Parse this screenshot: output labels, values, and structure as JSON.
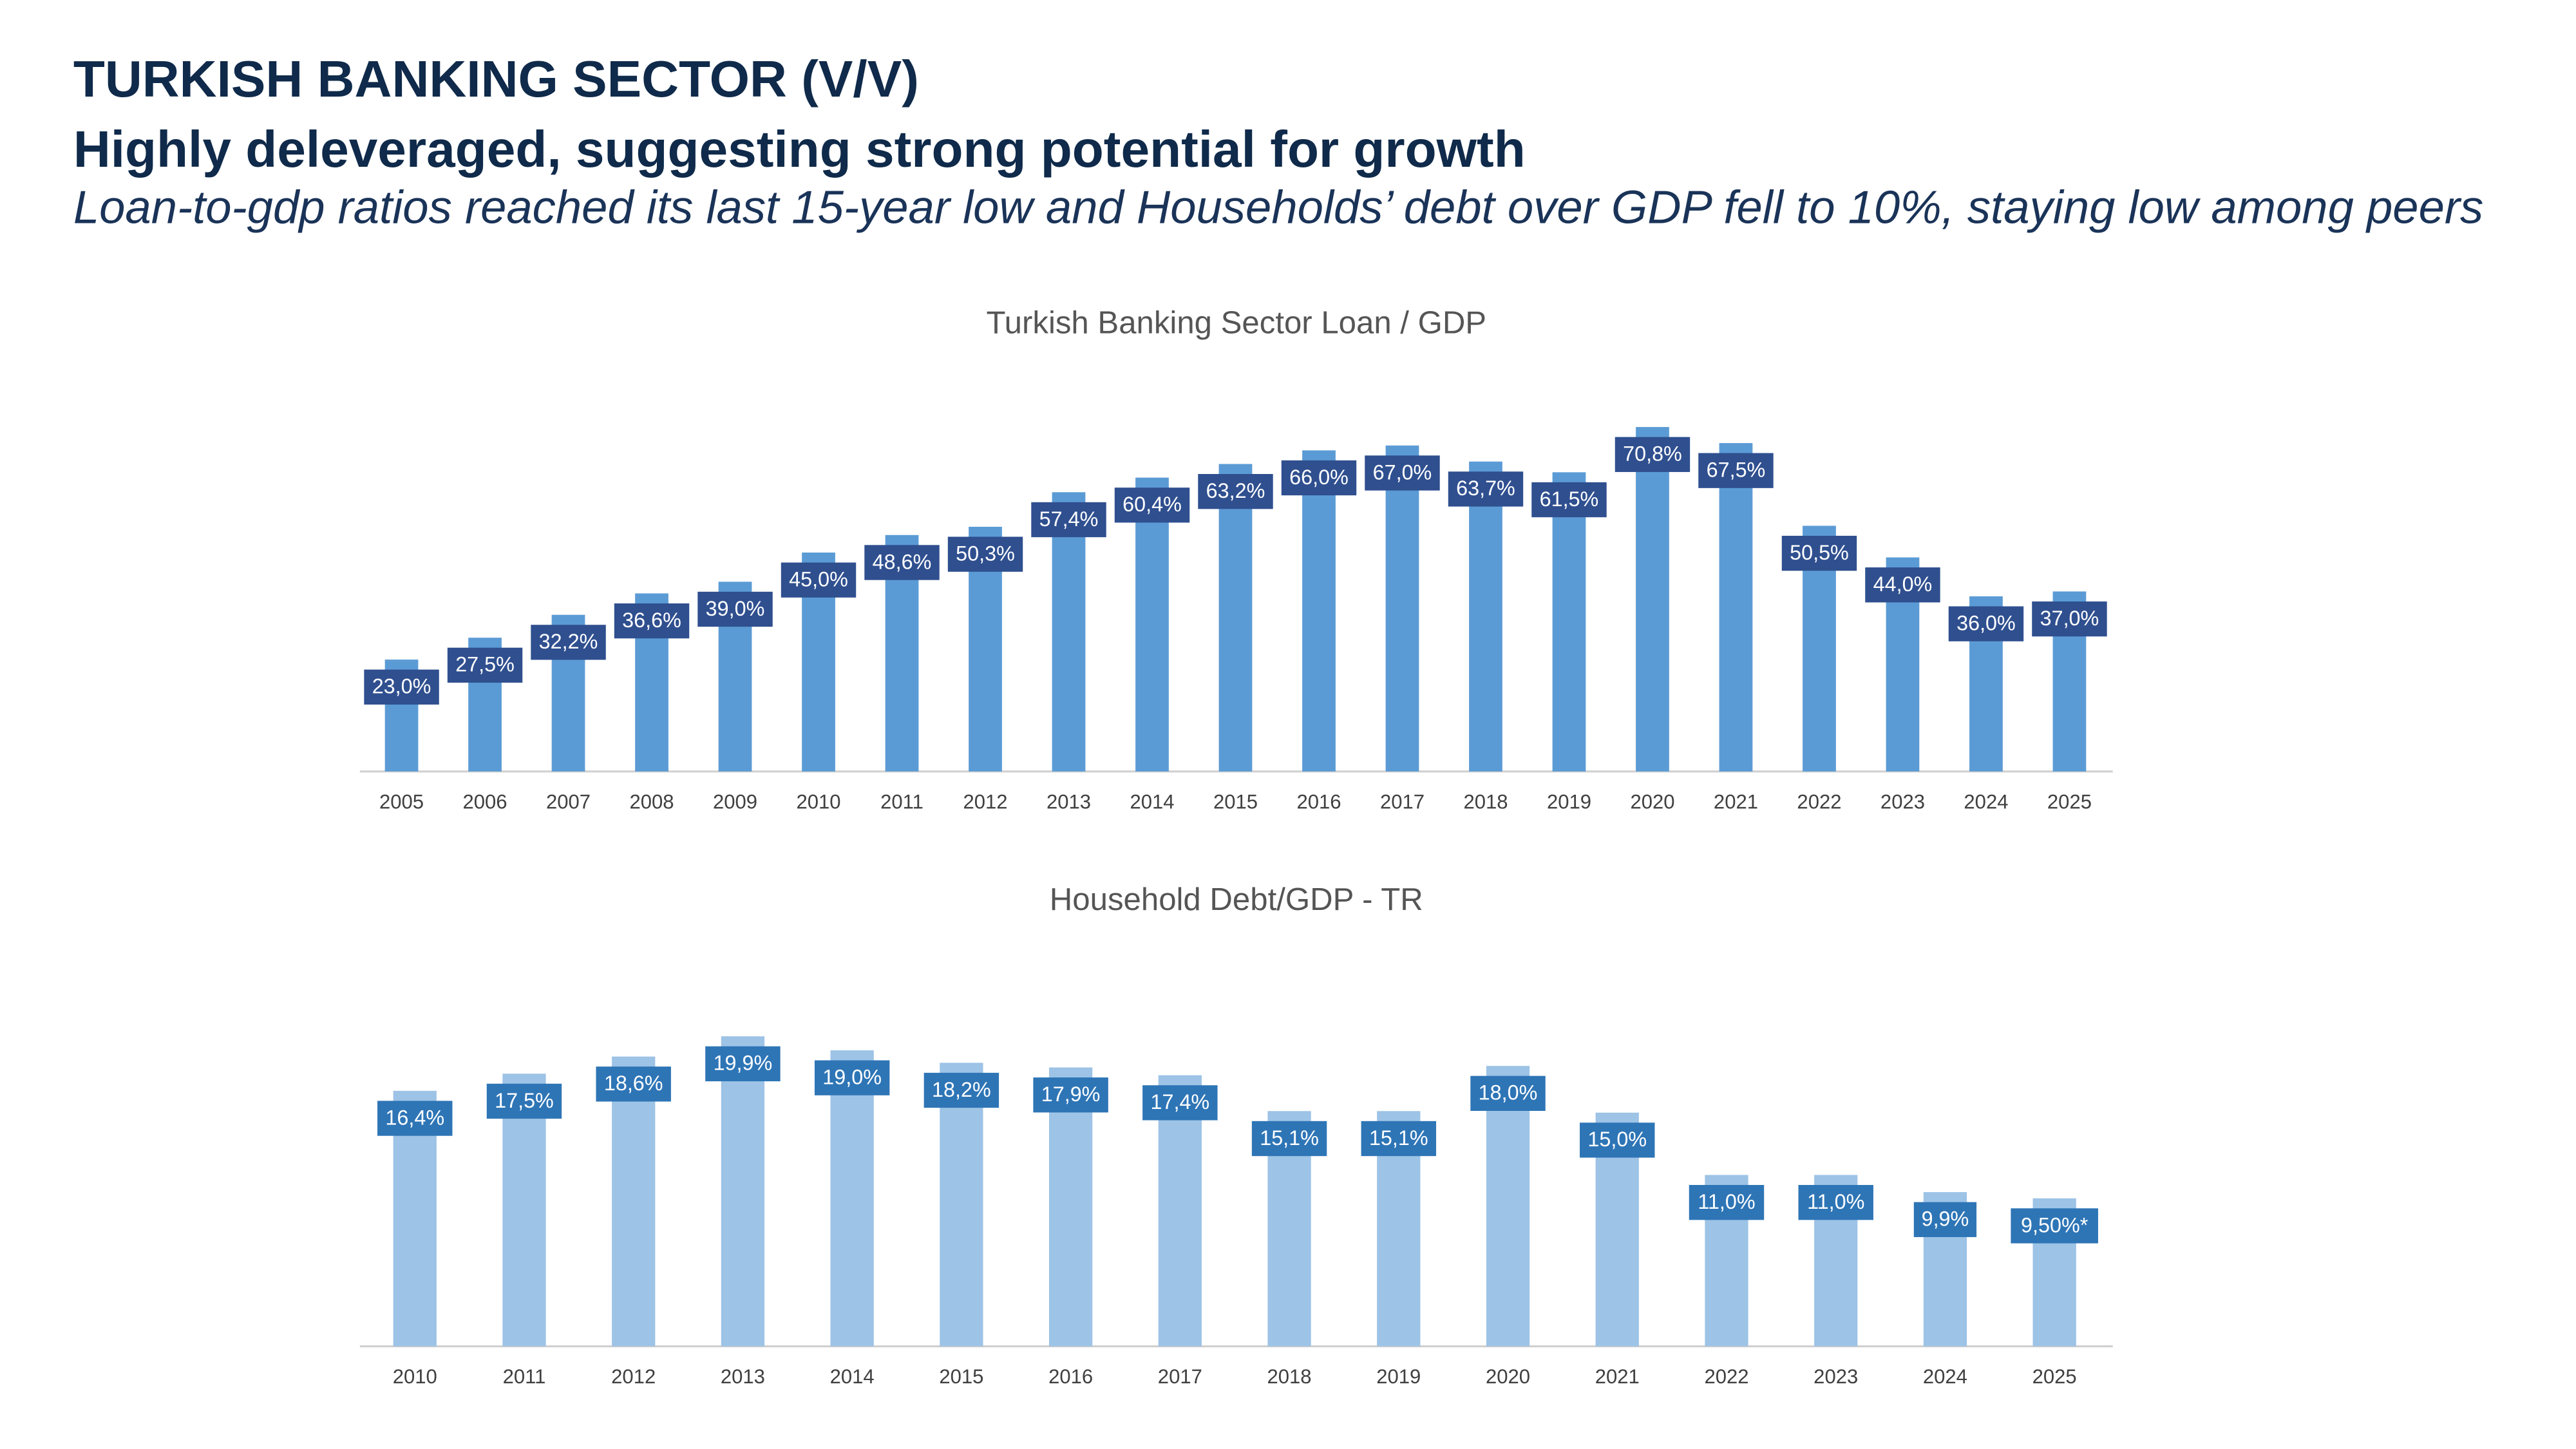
{
  "header": {
    "title": "TURKISH BANKING SECTOR (V/V)",
    "subtitle": "Highly deleveraged, suggesting strong potential for growth",
    "description": "Loan-to-gdp ratios reached its last 15-year low and Households’ debt over GDP fell to 10%, staying low among peers"
  },
  "chart_data": [
    {
      "type": "bar",
      "title": "Turkish Banking Sector Loan / GDP",
      "categories": [
        "2005",
        "2006",
        "2007",
        "2008",
        "2009",
        "2010",
        "2011",
        "2012",
        "2013",
        "2014",
        "2015",
        "2016",
        "2017",
        "2018",
        "2019",
        "2020",
        "2021",
        "2022",
        "2023",
        "2024",
        "2025"
      ],
      "values": [
        23.0,
        27.5,
        32.2,
        36.6,
        39.0,
        45.0,
        48.6,
        50.3,
        57.4,
        60.4,
        63.2,
        66.0,
        67.0,
        63.7,
        61.5,
        70.8,
        67.5,
        50.5,
        44.0,
        36.0,
        37.0
      ],
      "value_labels": [
        "23,0%",
        "27,5%",
        "32,2%",
        "36,6%",
        "39,0%",
        "45,0%",
        "48,6%",
        "50,3%",
        "57,4%",
        "60,4%",
        "63,2%",
        "66,0%",
        "67,0%",
        "63,7%",
        "61,5%",
        "70,8%",
        "67,5%",
        "50,5%",
        "44,0%",
        "36,0%",
        "37,0%"
      ],
      "color": "#5b9bd5",
      "label_color": "#2f4f8f"
    },
    {
      "type": "bar",
      "title": "Household Debt/GDP - TR",
      "categories": [
        "2010",
        "2011",
        "2012",
        "2013",
        "2014",
        "2015",
        "2016",
        "2017",
        "2018",
        "2019",
        "2020",
        "2021",
        "2022",
        "2023",
        "2024",
        "2025"
      ],
      "values": [
        16.4,
        17.5,
        18.6,
        19.9,
        19.0,
        18.2,
        17.9,
        17.4,
        15.1,
        15.1,
        18.0,
        15.0,
        11.0,
        11.0,
        9.9,
        9.5
      ],
      "value_labels": [
        "16,4%",
        "17,5%",
        "18,6%",
        "19,9%",
        "19,0%",
        "18,2%",
        "17,9%",
        "17,4%",
        "15,1%",
        "15,1%",
        "18,0%",
        "15,0%",
        "11,0%",
        "11,0%",
        "9,9%",
        "9,50%*"
      ],
      "color": "#9dc3e6",
      "label_color": "#2e75b6"
    }
  ]
}
